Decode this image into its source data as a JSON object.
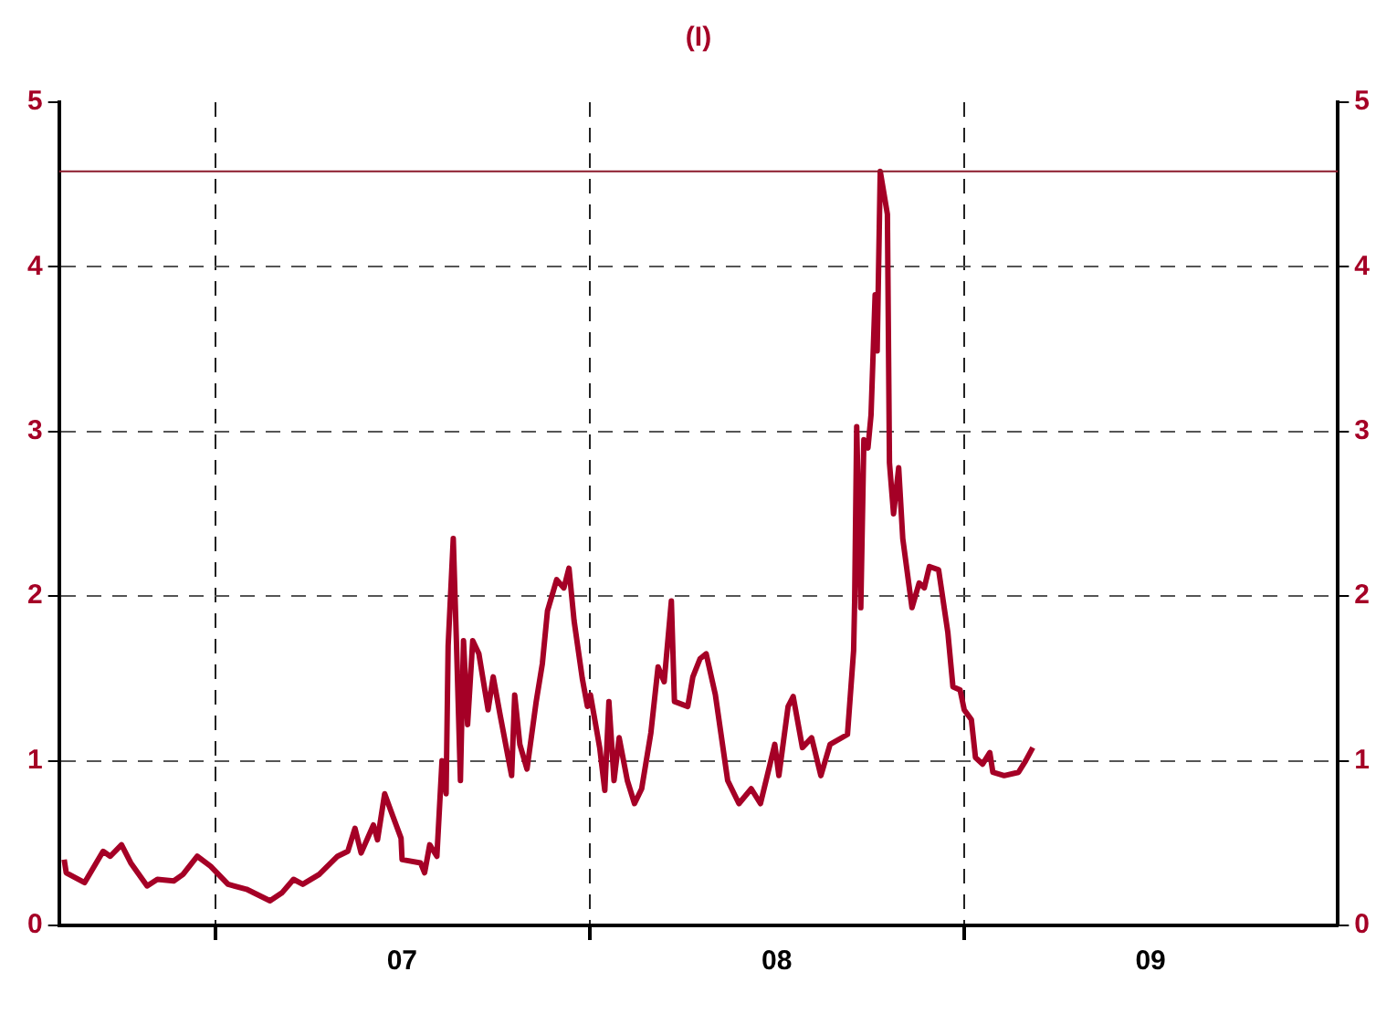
{
  "chart_data": {
    "type": "line",
    "title": "(I)",
    "x": [
      "2006-08-06",
      "2006-08-08",
      "2006-08-26",
      "2006-09-13",
      "2006-09-20",
      "2006-10-01",
      "2006-10-10",
      "2006-10-26",
      "2006-11-05",
      "2006-11-21",
      "2006-11-30",
      "2006-12-14",
      "2006-12-27",
      "2007-01-13",
      "2007-01-31",
      "2007-02-23",
      "2007-03-07",
      "2007-03-18",
      "2007-03-27",
      "2007-04-12",
      "2007-04-30",
      "2007-05-10",
      "2007-05-17",
      "2007-05-23",
      "2007-06-04",
      "2007-06-08",
      "2007-06-15",
      "2007-06-22",
      "2007-07-01",
      "2007-07-02",
      "2007-07-20",
      "2007-07-24",
      "2007-07-29",
      "2007-08-05",
      "2007-08-10",
      "2007-08-14",
      "2007-08-16",
      "2007-08-21",
      "2007-08-24",
      "2007-08-28",
      "2007-08-31",
      "2007-09-04",
      "2007-09-09",
      "2007-09-15",
      "2007-09-24",
      "2007-09-29",
      "2007-10-06",
      "2007-10-17",
      "2007-10-20",
      "2007-10-25",
      "2007-11-01",
      "2007-11-10",
      "2007-11-16",
      "2007-11-21",
      "2007-11-30",
      "2007-12-07",
      "2007-12-12",
      "2007-12-17",
      "2007-12-25",
      "2007-12-30",
      "2008-01-02",
      "2008-01-11",
      "2008-01-16",
      "2008-01-20",
      "2008-01-25",
      "2008-01-30",
      "2008-02-07",
      "2008-02-14",
      "2008-02-21",
      "2008-03-01",
      "2008-03-08",
      "2008-03-14",
      "2008-03-21",
      "2008-03-24",
      "2008-04-06",
      "2008-04-11",
      "2008-04-18",
      "2008-04-24",
      "2008-05-03",
      "2008-05-15",
      "2008-05-26",
      "2008-06-07",
      "2008-06-16",
      "2008-06-25",
      "2008-06-30",
      "2008-07-04",
      "2008-07-13",
      "2008-07-18",
      "2008-07-27",
      "2008-08-05",
      "2008-08-14",
      "2008-08-23",
      "2008-09-09",
      "2008-09-15",
      "2008-09-16",
      "2008-09-18",
      "2008-09-22",
      "2008-09-25",
      "2008-09-29",
      "2008-10-02",
      "2008-10-06",
      "2008-10-08",
      "2008-10-11",
      "2008-10-18",
      "2008-10-20",
      "2008-10-24",
      "2008-10-29",
      "2008-11-02",
      "2008-11-11",
      "2008-11-18",
      "2008-11-23",
      "2008-11-28",
      "2008-12-07",
      "2008-12-16",
      "2008-12-21",
      "2008-12-28",
      "2009-01-01",
      "2009-01-08",
      "2009-01-12",
      "2009-01-19",
      "2009-01-26",
      "2009-01-29",
      "2009-02-09",
      "2009-02-23",
      "2009-03-02",
      "2009-03-09"
    ],
    "series": [
      {
        "color": "#a50026",
        "values": [
          0.4,
          0.32,
          0.26,
          0.45,
          0.42,
          0.49,
          0.38,
          0.24,
          0.28,
          0.27,
          0.31,
          0.42,
          0.36,
          0.25,
          0.22,
          0.15,
          0.2,
          0.28,
          0.25,
          0.31,
          0.42,
          0.45,
          0.59,
          0.44,
          0.61,
          0.52,
          0.8,
          0.68,
          0.53,
          0.4,
          0.38,
          0.32,
          0.49,
          0.42,
          1.0,
          0.8,
          1.7,
          2.35,
          1.74,
          0.88,
          1.73,
          1.22,
          1.73,
          1.65,
          1.31,
          1.51,
          1.27,
          0.91,
          1.4,
          1.1,
          0.95,
          1.36,
          1.59,
          1.91,
          2.1,
          2.05,
          2.17,
          1.85,
          1.5,
          1.33,
          1.4,
          1.08,
          0.82,
          1.36,
          0.88,
          1.14,
          0.88,
          0.74,
          0.83,
          1.17,
          1.57,
          1.48,
          1.97,
          1.36,
          1.33,
          1.51,
          1.62,
          1.65,
          1.4,
          0.88,
          0.74,
          0.83,
          0.74,
          0.97,
          1.1,
          0.91,
          1.33,
          1.39,
          1.08,
          1.14,
          0.91,
          1.1,
          1.16,
          1.67,
          1.97,
          3.03,
          1.93,
          2.95,
          2.9,
          3.1,
          3.83,
          3.49,
          4.58,
          4.32,
          2.81,
          2.5,
          2.78,
          2.35,
          1.93,
          2.08,
          2.05,
          2.18,
          2.16,
          1.78,
          1.45,
          1.43,
          1.31,
          1.25,
          1.02,
          0.98,
          1.05,
          0.93,
          0.91,
          0.93,
          1.0,
          1.08
        ]
      }
    ],
    "xlim": [
      "2006-08-01",
      "2010-01-01"
    ],
    "xticks": [
      {
        "value": "2007-01-01",
        "label": null
      },
      {
        "value": "2007-07-02",
        "label": "07"
      },
      {
        "value": "2008-01-01",
        "label": null
      },
      {
        "value": "2008-07-02",
        "label": "08"
      },
      {
        "value": "2009-01-01",
        "label": null
      },
      {
        "value": "2009-07-02",
        "label": "09"
      }
    ],
    "ylim": [
      0,
      5
    ],
    "yticks": [
      0,
      1,
      2,
      3,
      4,
      5
    ],
    "y2lim": [
      0,
      5
    ],
    "y2ticks": [
      0,
      1,
      2,
      3,
      4,
      5
    ],
    "ref_lines": [
      {
        "axis": "y",
        "value": 4.58,
        "color": "#8b1a2b",
        "line_style": "solid"
      }
    ],
    "grid": true,
    "legend": false,
    "marker": "none",
    "line_style": "solid"
  }
}
